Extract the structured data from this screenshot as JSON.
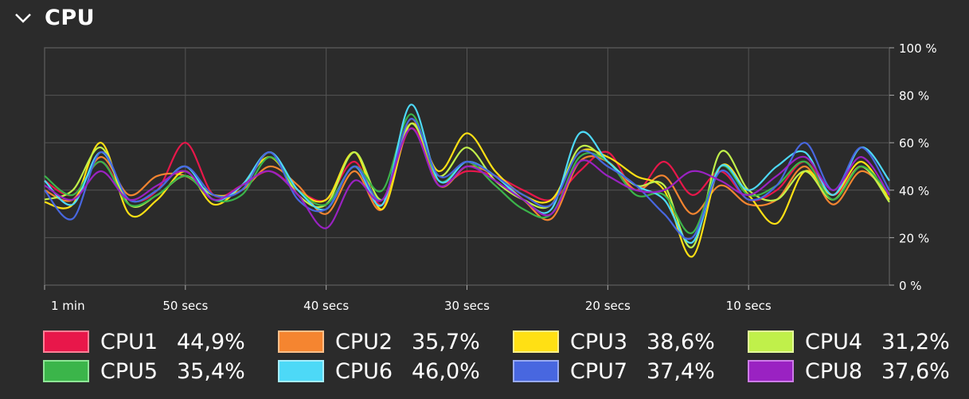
{
  "section": {
    "title": "CPU",
    "collapse_icon": "chevron-down-icon"
  },
  "graph": {
    "x_labels": [
      "1 min",
      "50 secs",
      "40 secs",
      "30 secs",
      "20 secs",
      "10 secs"
    ],
    "y_labels": [
      "100 %",
      "80 %",
      "60 %",
      "40 %",
      "20 %",
      "0 %"
    ],
    "colors": {
      "grid": "#555555",
      "axis": "#aaaaaa",
      "text": "#ffffff"
    }
  },
  "chart_data": {
    "type": "line",
    "x_unit": "seconds ago",
    "x": [
      60,
      58,
      56,
      54,
      52,
      50,
      48,
      46,
      44,
      42,
      40,
      38,
      36,
      34,
      32,
      30,
      28,
      26,
      24,
      22,
      20,
      18,
      16,
      14,
      12,
      10,
      8,
      6,
      4,
      2,
      0
    ],
    "ylim": [
      0,
      100
    ],
    "series": [
      {
        "name": "CPU1",
        "color": "#e8174a",
        "values": [
          44,
          38,
          52,
          36,
          40,
          60,
          38,
          42,
          48,
          40,
          36,
          52,
          34,
          66,
          44,
          48,
          46,
          40,
          36,
          48,
          56,
          40,
          52,
          38,
          48,
          36,
          40,
          52,
          38,
          50,
          36
        ]
      },
      {
        "name": "CPU2",
        "color": "#f58530",
        "values": [
          40,
          36,
          54,
          38,
          46,
          46,
          38,
          40,
          50,
          42,
          30,
          48,
          32,
          70,
          42,
          50,
          46,
          36,
          28,
          52,
          52,
          40,
          46,
          30,
          42,
          34,
          36,
          50,
          34,
          48,
          38
        ]
      },
      {
        "name": "CPU3",
        "color": "#ffe014",
        "values": [
          35,
          34,
          60,
          30,
          36,
          48,
          34,
          42,
          54,
          40,
          36,
          56,
          32,
          68,
          48,
          64,
          48,
          38,
          36,
          56,
          54,
          46,
          40,
          12,
          50,
          38,
          26,
          48,
          38,
          52,
          36
        ]
      },
      {
        "name": "CPU4",
        "color": "#c0f04a",
        "values": [
          36,
          40,
          58,
          34,
          38,
          46,
          38,
          40,
          56,
          38,
          34,
          56,
          36,
          68,
          46,
          58,
          44,
          36,
          34,
          58,
          52,
          42,
          42,
          16,
          56,
          40,
          36,
          48,
          36,
          50,
          35
        ]
      },
      {
        "name": "CPU5",
        "color": "#3bb54a",
        "values": [
          46,
          38,
          52,
          34,
          38,
          46,
          36,
          38,
          54,
          40,
          34,
          50,
          40,
          72,
          44,
          52,
          42,
          32,
          30,
          54,
          52,
          38,
          38,
          22,
          50,
          38,
          42,
          52,
          36,
          50,
          38
        ]
      },
      {
        "name": "CPU6",
        "color": "#4dd9f7",
        "values": [
          44,
          34,
          56,
          36,
          40,
          50,
          36,
          42,
          56,
          40,
          32,
          50,
          34,
          76,
          44,
          52,
          46,
          36,
          32,
          64,
          52,
          42,
          36,
          18,
          50,
          40,
          50,
          56,
          38,
          58,
          44
        ]
      },
      {
        "name": "CPU7",
        "color": "#4867e0",
        "values": [
          40,
          28,
          56,
          36,
          40,
          50,
          38,
          40,
          56,
          36,
          32,
          50,
          36,
          70,
          46,
          52,
          46,
          38,
          34,
          56,
          50,
          42,
          30,
          20,
          48,
          36,
          42,
          60,
          40,
          58,
          40
        ]
      },
      {
        "name": "CPU8",
        "color": "#9a22c2",
        "values": [
          42,
          36,
          48,
          36,
          42,
          48,
          36,
          42,
          48,
          38,
          24,
          44,
          36,
          66,
          42,
          50,
          44,
          36,
          30,
          52,
          46,
          40,
          40,
          48,
          44,
          38,
          46,
          54,
          40,
          54,
          38
        ]
      }
    ]
  },
  "legend": [
    {
      "name": "CPU1",
      "value": "44,9%",
      "fill": "#e8174a",
      "border": "#ff8096"
    },
    {
      "name": "CPU2",
      "value": "35,7%",
      "fill": "#f58530",
      "border": "#ffc08a"
    },
    {
      "name": "CPU3",
      "value": "38,6%",
      "fill": "#ffe014",
      "border": "#fff08a"
    },
    {
      "name": "CPU4",
      "value": "31,2%",
      "fill": "#c0f04a",
      "border": "#e4ff9c"
    },
    {
      "name": "CPU5",
      "value": "35,4%",
      "fill": "#3bb54a",
      "border": "#8ee596"
    },
    {
      "name": "CPU6",
      "value": "46,0%",
      "fill": "#4dd9f7",
      "border": "#a6eefc"
    },
    {
      "name": "CPU7",
      "value": "37,4%",
      "fill": "#4867e0",
      "border": "#98aaf2"
    },
    {
      "name": "CPU8",
      "value": "37,6%",
      "fill": "#9a22c2",
      "border": "#cd7ce8"
    }
  ]
}
